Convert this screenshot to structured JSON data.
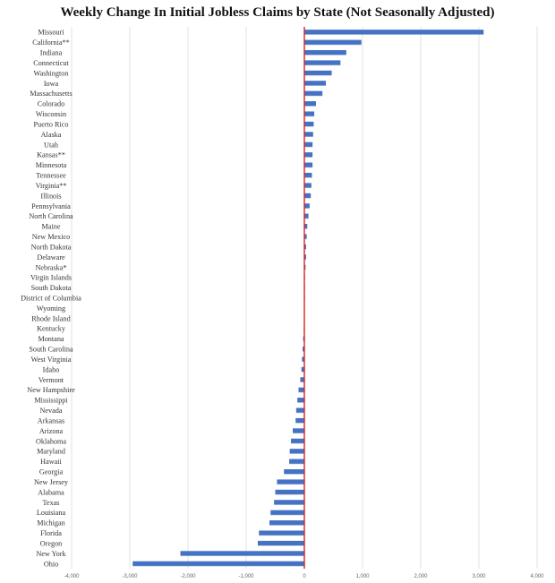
{
  "title": "Weekly Change In Initial Jobless Claims by State (Not Seasonally Adjusted)",
  "colors": {
    "bar": "#4472c4",
    "zero_line": "#e02020",
    "grid": "#d9d9d9"
  },
  "chart_data": {
    "type": "bar",
    "orientation": "horizontal",
    "title": "Weekly Change In Initial Jobless Claims by State (Not Seasonally Adjusted)",
    "xlabel": "",
    "ylabel": "",
    "xlim": [
      -4000,
      4000
    ],
    "xticks": [
      -4000,
      -3000,
      -2000,
      -1000,
      0,
      1000,
      2000,
      3000,
      4000
    ],
    "xtick_labels": [
      "-4,000",
      "-3,000",
      "-2,000",
      "-1,000",
      "0",
      "1,000",
      "2,000",
      "3,000",
      "4,000"
    ],
    "grid": true,
    "categories": [
      "Missouri",
      "California**",
      "Indiana",
      "Connecticut",
      "Washington",
      "Iowa",
      "Massachusetts",
      "Colorado",
      "Wisconsin",
      "Puerto Rico",
      "Alaska",
      "Utah",
      "Kansas**",
      "Minnesota",
      "Tennessee",
      "Virginia**",
      "Illinois",
      "Pennsylvania",
      "North Carolina",
      "Maine",
      "New Mexico",
      "North Dakota",
      "Delaware",
      "Nebraska*",
      "Virgin Islands",
      "South Dakota",
      "District of Columbia",
      "Wyoming",
      "Rhode Island",
      "Kentucky",
      "Montana",
      "South Carolina",
      "West Virginia",
      "Idaho",
      "Vermont",
      "New Hampshire",
      "Mississippi",
      "Nevada",
      "Arkansas",
      "Arizona",
      "Oklahoma",
      "Maryland",
      "Hawaii",
      "Georgia",
      "New Jersey",
      "Alabama",
      "Texas",
      "Louisiana",
      "Michigan",
      "Florida",
      "Oregon",
      "New York",
      "Ohio"
    ],
    "values": [
      3080,
      980,
      720,
      620,
      470,
      370,
      310,
      200,
      170,
      160,
      150,
      140,
      140,
      140,
      130,
      120,
      110,
      90,
      70,
      50,
      40,
      30,
      30,
      20,
      10,
      5,
      5,
      0,
      0,
      -10,
      -20,
      -30,
      -40,
      -50,
      -70,
      -100,
      -120,
      -140,
      -150,
      -200,
      -230,
      -250,
      -260,
      -350,
      -470,
      -500,
      -520,
      -580,
      -600,
      -780,
      -800,
      -2130,
      -2950
    ]
  }
}
